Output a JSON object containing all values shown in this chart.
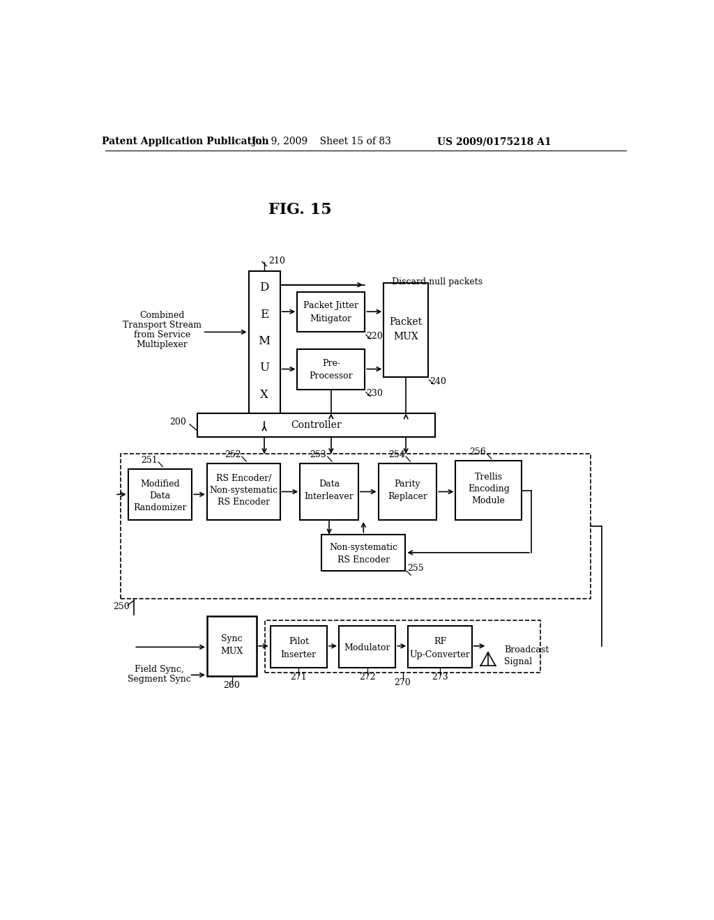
{
  "title": "FIG. 15",
  "header_left": "Patent Application Publication",
  "header_mid": "Jul. 9, 2009   Sheet 15 of 83",
  "header_right": "US 2009/0175218 A1",
  "bg_color": "#ffffff"
}
